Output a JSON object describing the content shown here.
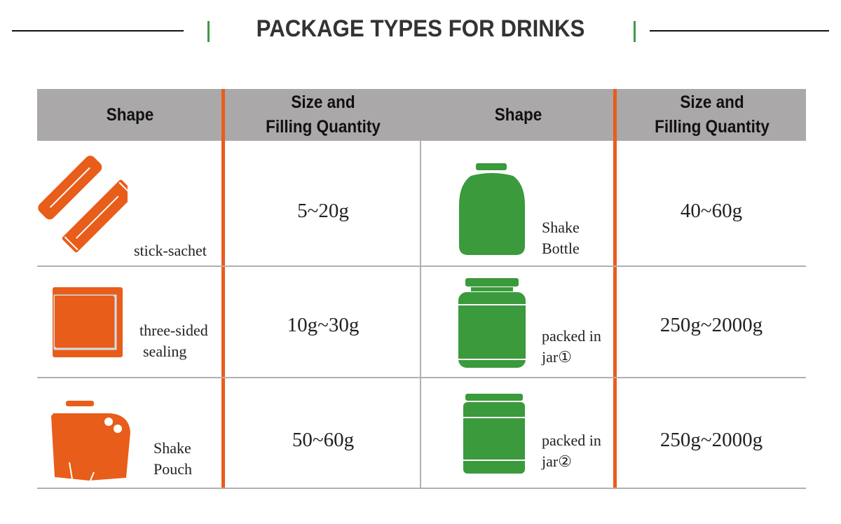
{
  "title": "PACKAGE TYPES FOR DRINKS",
  "colors": {
    "accent_orange": "#e85d1a",
    "accent_green": "#3a9a3c",
    "header_gray": "#aaa8a8"
  },
  "headers": [
    "Shape",
    "Size and\nFilling Quantity",
    "Shape",
    "Size and\nFilling Quantity"
  ],
  "header_lines": {
    "shape": "Shape",
    "size_line1": "Size and",
    "size_line2": "Filling Quantity"
  },
  "rows": [
    {
      "left": {
        "icon": "stick-sachet-icon",
        "label": "stick-sachet",
        "qty": "5~20g"
      },
      "right": {
        "icon": "shake-bottle-icon",
        "label_line1": "Shake",
        "label_line2": "Bottle",
        "qty": "40~60g"
      }
    },
    {
      "left": {
        "icon": "three-sided-sealing-icon",
        "label_line1": "three-sided",
        "label_line2": "sealing",
        "qty": "10g~30g"
      },
      "right": {
        "icon": "jar-icon",
        "label_line1": "packed in",
        "label_line2": "jar①",
        "qty": "250g~2000g"
      }
    },
    {
      "left": {
        "icon": "shake-pouch-icon",
        "label_line1": "Shake",
        "label_line2": "Pouch",
        "qty": "50~60g"
      },
      "right": {
        "icon": "jar-icon",
        "label_line1": "packed in",
        "label_line2": "jar②",
        "qty": "250g~2000g"
      }
    }
  ]
}
